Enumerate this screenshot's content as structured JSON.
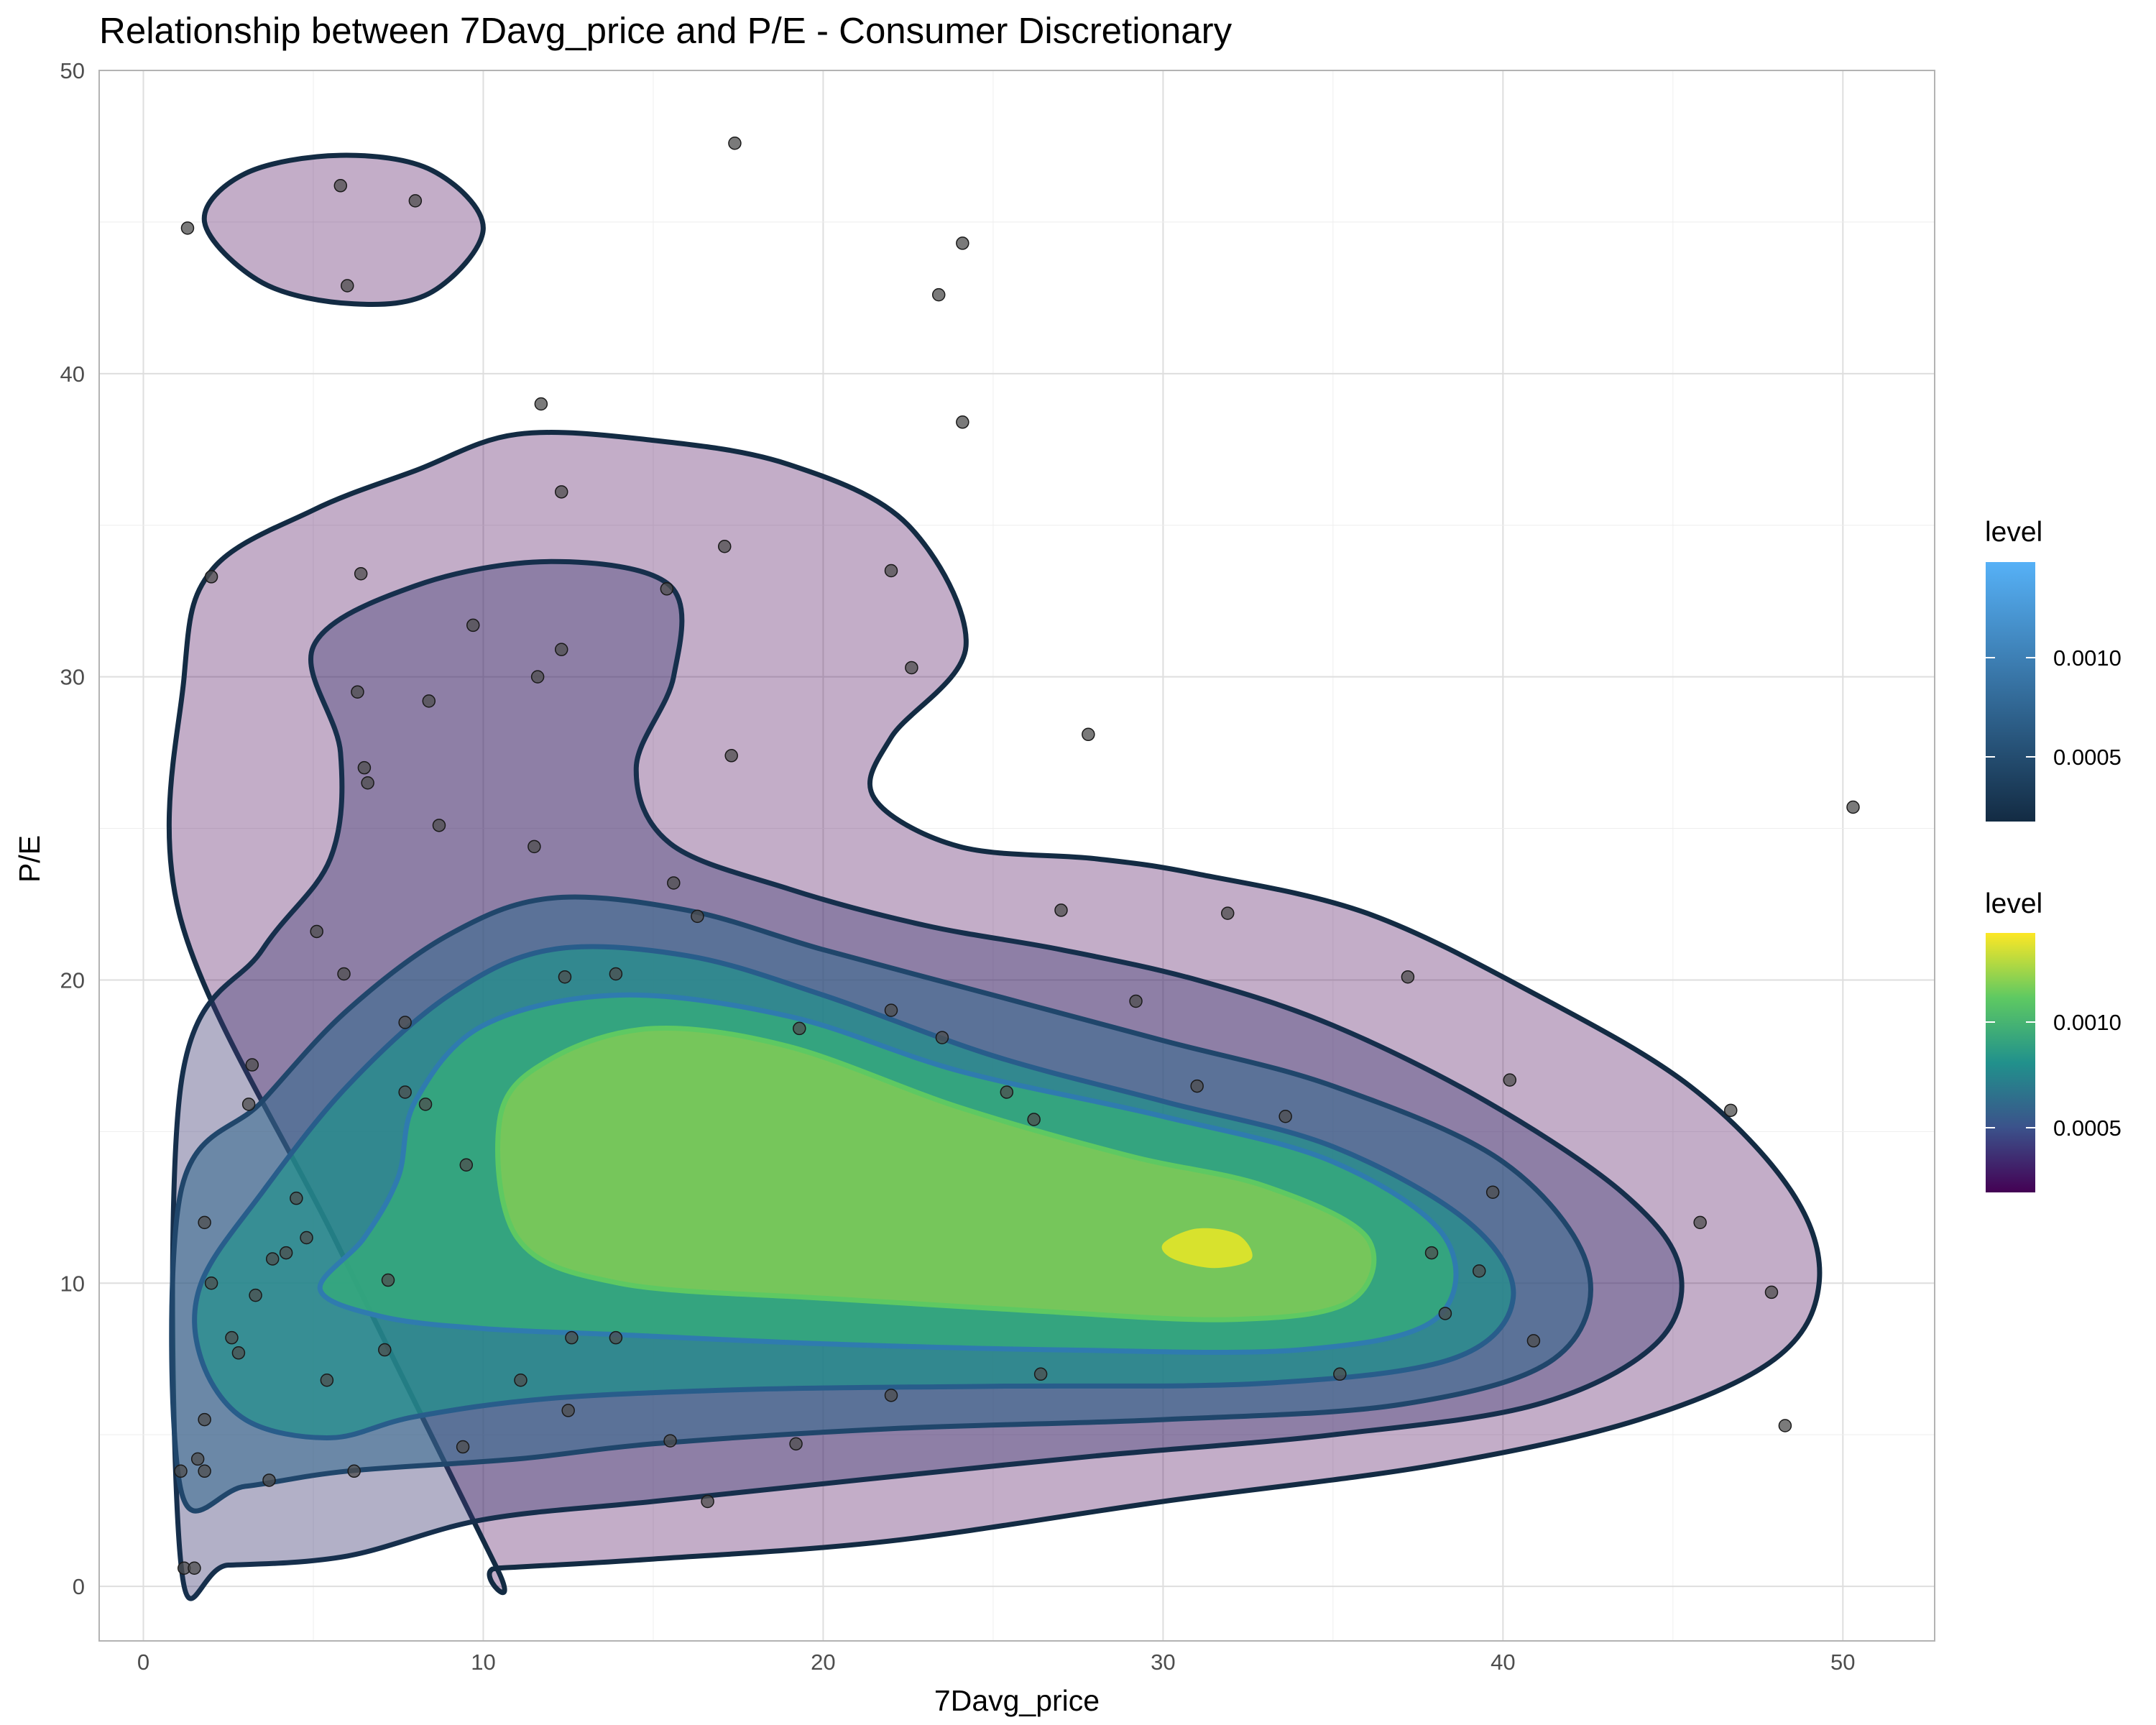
{
  "chart_data": {
    "type": "scatter",
    "title": "Relationship between 7Davg_price and P/E - Consumer Discretionary",
    "xlabel": "7Davg_price",
    "ylabel": "P/E",
    "xlim": [
      -1.3,
      52.7
    ],
    "ylim": [
      -1.8,
      50
    ],
    "x_ticks": [
      0,
      10,
      20,
      30,
      40,
      50
    ],
    "y_ticks": [
      0,
      10,
      20,
      30,
      40,
      50
    ],
    "grid": true,
    "series": [
      {
        "points": [
          [
            1.3,
            44.8
          ],
          [
            5.8,
            46.2
          ],
          [
            8.0,
            45.7
          ],
          [
            6.0,
            42.9
          ],
          [
            17.4,
            47.6
          ],
          [
            24.1,
            44.3
          ],
          [
            23.4,
            42.6
          ],
          [
            24.1,
            38.4
          ],
          [
            11.7,
            39.0
          ],
          [
            12.3,
            36.1
          ],
          [
            17.1,
            34.3
          ],
          [
            22.0,
            33.5
          ],
          [
            15.4,
            32.9
          ],
          [
            6.4,
            33.4
          ],
          [
            2.0,
            33.3
          ],
          [
            9.7,
            31.7
          ],
          [
            12.3,
            30.9
          ],
          [
            11.6,
            30.0
          ],
          [
            22.6,
            30.3
          ],
          [
            6.3,
            29.5
          ],
          [
            8.4,
            29.2
          ],
          [
            6.5,
            27.0
          ],
          [
            6.6,
            26.5
          ],
          [
            17.3,
            27.4
          ],
          [
            27.8,
            28.1
          ],
          [
            50.3,
            25.7
          ],
          [
            8.7,
            25.1
          ],
          [
            11.5,
            24.4
          ],
          [
            15.6,
            23.2
          ],
          [
            16.3,
            22.1
          ],
          [
            27.0,
            22.3
          ],
          [
            31.9,
            22.2
          ],
          [
            5.1,
            21.6
          ],
          [
            5.9,
            20.2
          ],
          [
            12.4,
            20.1
          ],
          [
            13.9,
            20.2
          ],
          [
            37.2,
            20.1
          ],
          [
            22.0,
            19.0
          ],
          [
            29.2,
            19.3
          ],
          [
            7.7,
            18.6
          ],
          [
            19.3,
            18.4
          ],
          [
            23.5,
            18.1
          ],
          [
            3.2,
            17.2
          ],
          [
            40.2,
            16.7
          ],
          [
            31.0,
            16.5
          ],
          [
            25.4,
            16.3
          ],
          [
            7.7,
            16.3
          ],
          [
            8.3,
            15.9
          ],
          [
            3.1,
            15.9
          ],
          [
            46.7,
            15.7
          ],
          [
            33.6,
            15.5
          ],
          [
            26.2,
            15.4
          ],
          [
            9.5,
            13.9
          ],
          [
            4.5,
            12.8
          ],
          [
            39.7,
            13.0
          ],
          [
            1.8,
            12.0
          ],
          [
            4.8,
            11.5
          ],
          [
            45.8,
            12.0
          ],
          [
            3.8,
            10.8
          ],
          [
            4.2,
            11.0
          ],
          [
            37.9,
            11.0
          ],
          [
            39.3,
            10.4
          ],
          [
            2.0,
            10.0
          ],
          [
            7.2,
            10.1
          ],
          [
            47.9,
            9.7
          ],
          [
            3.3,
            9.6
          ],
          [
            38.3,
            9.0
          ],
          [
            2.6,
            8.2
          ],
          [
            2.8,
            7.7
          ],
          [
            12.6,
            8.2
          ],
          [
            13.9,
            8.2
          ],
          [
            40.9,
            8.1
          ],
          [
            7.1,
            7.8
          ],
          [
            26.4,
            7.0
          ],
          [
            35.2,
            7.0
          ],
          [
            5.4,
            6.8
          ],
          [
            11.1,
            6.8
          ],
          [
            22.0,
            6.3
          ],
          [
            12.5,
            5.8
          ],
          [
            1.8,
            5.5
          ],
          [
            48.3,
            5.3
          ],
          [
            9.4,
            4.6
          ],
          [
            15.5,
            4.8
          ],
          [
            19.2,
            4.7
          ],
          [
            1.6,
            4.2
          ],
          [
            1.1,
            3.8
          ],
          [
            1.8,
            3.8
          ],
          [
            6.2,
            3.8
          ],
          [
            3.7,
            3.5
          ],
          [
            16.6,
            2.8
          ],
          [
            1.2,
            0.6
          ],
          [
            1.5,
            0.6
          ]
        ]
      }
    ],
    "legends": [
      {
        "title": "level",
        "aesthetic": "colour",
        "breaks": [
          "0.0010",
          "0.0005"
        ],
        "gradient": [
          "#132B43",
          "#56B1F7"
        ]
      },
      {
        "title": "level",
        "aesthetic": "fill",
        "breaks": [
          "0.0010",
          "0.0005"
        ],
        "gradient": [
          "#440154",
          "#3b528b",
          "#21918c",
          "#5ec962",
          "#fde725"
        ]
      }
    ]
  }
}
